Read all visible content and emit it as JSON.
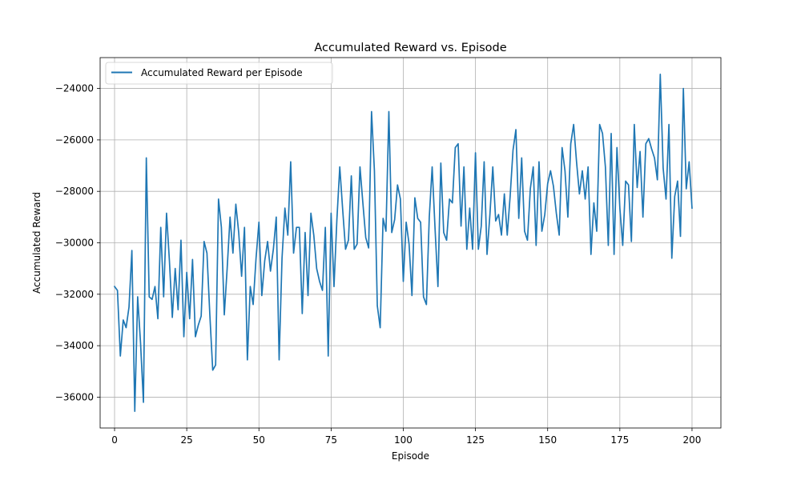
{
  "chart_data": {
    "type": "line",
    "title": "Accumulated Reward vs. Episode",
    "xlabel": "Episode",
    "ylabel": "Accumulated Reward",
    "xlim": [
      -5,
      210
    ],
    "ylim": [
      -37200,
      -22800
    ],
    "xticks": [
      0,
      25,
      50,
      75,
      100,
      125,
      150,
      175,
      200
    ],
    "yticks": [
      -36000,
      -34000,
      -32000,
      -30000,
      -28000,
      -26000,
      -24000
    ],
    "grid": true,
    "legend_position": "top-left",
    "series": [
      {
        "name": "Accumulated Reward per Episode",
        "color": "#1f77b4",
        "x_start": 0,
        "x_step": 1,
        "values": [
          -31700,
          -31850,
          -34400,
          -33000,
          -33300,
          -32500,
          -30300,
          -36550,
          -32100,
          -33900,
          -36200,
          -26700,
          -32100,
          -32200,
          -31700,
          -32950,
          -29400,
          -32100,
          -28850,
          -30700,
          -32900,
          -31000,
          -32600,
          -29900,
          -33650,
          -31150,
          -32950,
          -30650,
          -33650,
          -33200,
          -32850,
          -29950,
          -30400,
          -32800,
          -34950,
          -34750,
          -28300,
          -29400,
          -32800,
          -31000,
          -29000,
          -30400,
          -28500,
          -29600,
          -31300,
          -29400,
          -34550,
          -31700,
          -32400,
          -30600,
          -29200,
          -32050,
          -30700,
          -29950,
          -31100,
          -30250,
          -29000,
          -34550,
          -30600,
          -28650,
          -29700,
          -26850,
          -30400,
          -29400,
          -29400,
          -32750,
          -29600,
          -32050,
          -28850,
          -29700,
          -31000,
          -31500,
          -31850,
          -29400,
          -34400,
          -28850,
          -31700,
          -29100,
          -27050,
          -28700,
          -30250,
          -29900,
          -27400,
          -30250,
          -30050,
          -27050,
          -28450,
          -29800,
          -30200,
          -24900,
          -27200,
          -32450,
          -33300,
          -29050,
          -29550,
          -24900,
          -29600,
          -29100,
          -27750,
          -28300,
          -31500,
          -29200,
          -30050,
          -32050,
          -28250,
          -29050,
          -29200,
          -32100,
          -32400,
          -29000,
          -27050,
          -29450,
          -31700,
          -26900,
          -29600,
          -29900,
          -28300,
          -28450,
          -26300,
          -26150,
          -29350,
          -27050,
          -30250,
          -28650,
          -30250,
          -26500,
          -30250,
          -29350,
          -26850,
          -30450,
          -28900,
          -27050,
          -29150,
          -28900,
          -29700,
          -28100,
          -29700,
          -28200,
          -26400,
          -25600,
          -29050,
          -26700,
          -29550,
          -29900,
          -27900,
          -27050,
          -30100,
          -26850,
          -29550,
          -28900,
          -27700,
          -27200,
          -27800,
          -28850,
          -29700,
          -26300,
          -27200,
          -29000,
          -26150,
          -25400,
          -26850,
          -28100,
          -27200,
          -28300,
          -27050,
          -30450,
          -28450,
          -29550,
          -25400,
          -25750,
          -27050,
          -30100,
          -25750,
          -30450,
          -26300,
          -28650,
          -30100,
          -27600,
          -27750,
          -29950,
          -25400,
          -27850,
          -26450,
          -29000,
          -26150,
          -25950,
          -26350,
          -26700,
          -27550,
          -23450,
          -27100,
          -28300,
          -25400,
          -30600,
          -28200,
          -27600,
          -29750,
          -24000,
          -27900,
          -26850,
          -28650
        ]
      }
    ]
  }
}
